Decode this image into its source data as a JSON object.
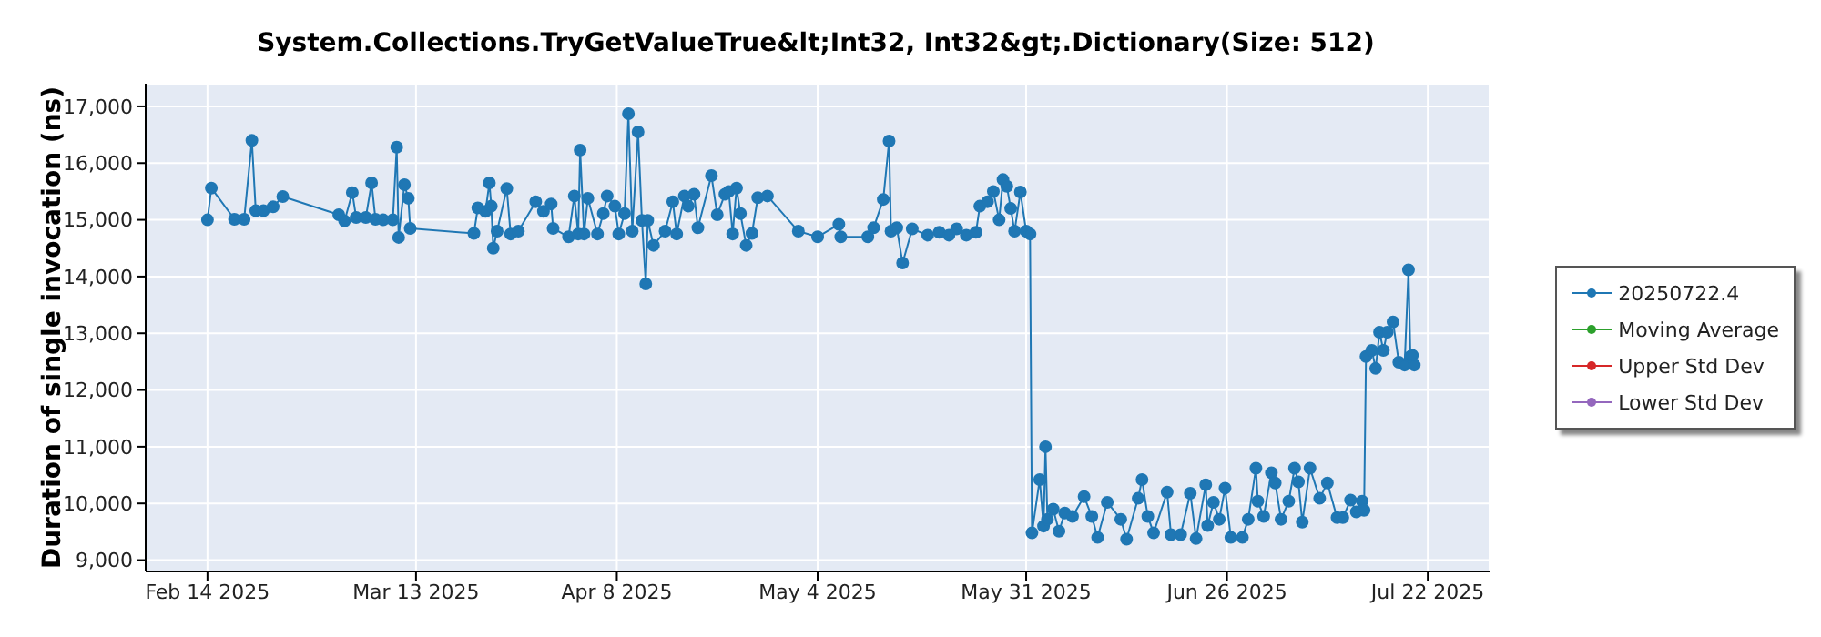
{
  "chart_data": {
    "type": "line",
    "title": "System.Collections.TryGetValueTrue&lt;Int32, Int32&gt;.Dictionary(Size: 512)",
    "ylabel": "Duration of single invocation (ns)",
    "xlim": [
      "2025-02-06",
      "2025-07-30"
    ],
    "xticks": [
      {
        "value": "2025-02-14",
        "label": "Feb 14 2025"
      },
      {
        "value": "2025-03-13",
        "label": "Mar 13 2025"
      },
      {
        "value": "2025-04-08",
        "label": "Apr 8 2025"
      },
      {
        "value": "2025-05-04",
        "label": "May 4 2025"
      },
      {
        "value": "2025-05-31",
        "label": "May 31 2025"
      },
      {
        "value": "2025-06-26",
        "label": "Jun 26 2025"
      },
      {
        "value": "2025-07-22",
        "label": "Jul 22 2025"
      }
    ],
    "ylim": [
      8800,
      17400
    ],
    "yticks": [
      {
        "value": 9000,
        "label": "9,000"
      },
      {
        "value": 10000,
        "label": "10,000"
      },
      {
        "value": 11000,
        "label": "11,000"
      },
      {
        "value": 12000,
        "label": "12,000"
      },
      {
        "value": 13000,
        "label": "13,000"
      },
      {
        "value": 14000,
        "label": "14,000"
      },
      {
        "value": 15000,
        "label": "15,000"
      },
      {
        "value": 16000,
        "label": "16,000"
      },
      {
        "value": 17000,
        "label": "17,000"
      }
    ],
    "grid": true,
    "legend": "right",
    "marker": "circle",
    "line_style": "solid",
    "series": [
      {
        "name": "20250722.4",
        "color": "#1f77b4",
        "x": [
          "2025-02-14T00:00",
          "2025-02-14T12:00",
          "2025-02-17T12:00",
          "2025-02-18T18:00",
          "2025-02-19T18:00",
          "2025-02-20T06:00",
          "2025-02-21T06:00",
          "2025-02-22T12:00",
          "2025-02-23T18:00",
          "2025-03-03T00:00",
          "2025-03-03T18:00",
          "2025-03-04T18:00",
          "2025-03-05T06:00",
          "2025-03-06T12:00",
          "2025-03-07T06:00",
          "2025-03-07T18:00",
          "2025-03-08T18:00",
          "2025-03-10T00:00",
          "2025-03-10T12:00",
          "2025-03-10T18:00",
          "2025-03-11T12:00",
          "2025-03-12T00:00",
          "2025-03-12T06:00",
          "2025-03-20T12:00",
          "2025-03-21T00:00",
          "2025-03-22T00:00",
          "2025-03-22T12:00",
          "2025-03-22T18:00",
          "2025-03-23T00:00",
          "2025-03-23T12:00",
          "2025-03-24T18:00",
          "2025-03-25T06:00",
          "2025-03-26T06:00",
          "2025-03-28T12:00",
          "2025-03-29T12:00",
          "2025-03-30T12:00",
          "2025-03-30T18:00",
          "2025-04-01T18:00",
          "2025-04-02T12:00",
          "2025-04-03T00:00",
          "2025-04-03T06:00",
          "2025-04-03T18:00",
          "2025-04-04T06:00",
          "2025-04-05T12:00",
          "2025-04-06T06:00",
          "2025-04-06T18:00",
          "2025-04-07T18:00",
          "2025-04-08T06:00",
          "2025-04-09T00:00",
          "2025-04-09T12:00",
          "2025-04-10T00:00",
          "2025-04-10T18:00",
          "2025-04-11T06:00",
          "2025-04-11T18:00",
          "2025-04-12T00:00",
          "2025-04-12T18:00",
          "2025-04-14T06:00",
          "2025-04-15T06:00",
          "2025-04-15T18:00",
          "2025-04-16T18:00",
          "2025-04-17T06:00",
          "2025-04-18T00:00",
          "2025-04-18T12:00",
          "2025-04-20T06:00",
          "2025-04-21T00:00",
          "2025-04-22T00:00",
          "2025-04-22T12:00",
          "2025-04-23T00:00",
          "2025-04-23T12:00",
          "2025-04-24T00:00",
          "2025-04-24T18:00",
          "2025-04-25T12:00",
          "2025-04-26T06:00",
          "2025-04-27T12:00",
          "2025-05-01T12:00",
          "2025-05-04T00:00",
          "2025-05-06T18:00",
          "2025-05-07T00:00",
          "2025-05-10T12:00",
          "2025-05-11T06:00",
          "2025-05-12T12:00",
          "2025-05-13T06:00",
          "2025-05-13T12:00",
          "2025-05-14T06:00",
          "2025-05-15T00:00",
          "2025-05-16T06:00",
          "2025-05-18T06:00",
          "2025-05-19T18:00",
          "2025-05-21T00:00",
          "2025-05-22T00:00",
          "2025-05-23T06:00",
          "2025-05-24T12:00",
          "2025-05-25T00:00",
          "2025-05-26T00:00",
          "2025-05-26T18:00",
          "2025-05-27T12:00",
          "2025-05-28T00:00",
          "2025-05-28T12:00",
          "2025-05-29T00:00",
          "2025-05-29T12:00",
          "2025-05-30T06:00",
          "2025-05-31T00:00",
          "2025-05-31T12:00",
          "2025-05-31T18:00",
          "2025-06-01T18:00",
          "2025-06-02T06:00",
          "2025-06-02T12:00",
          "2025-06-02T18:00",
          "2025-06-03T12:00",
          "2025-06-04T06:00",
          "2025-06-05T00:00",
          "2025-06-06T00:00",
          "2025-06-07T12:00",
          "2025-06-08T12:00",
          "2025-06-09T06:00",
          "2025-06-10T12:00",
          "2025-06-12T06:00",
          "2025-06-13T00:00",
          "2025-06-14T12:00",
          "2025-06-15T00:00",
          "2025-06-15T18:00",
          "2025-06-16T12:00",
          "2025-06-18T06:00",
          "2025-06-18T18:00",
          "2025-06-20T00:00",
          "2025-06-21T06:00",
          "2025-06-22T00:00",
          "2025-06-23T06:00",
          "2025-06-23T12:00",
          "2025-06-24T06:00",
          "2025-06-25T00:00",
          "2025-06-25T18:00",
          "2025-06-26T12:00",
          "2025-06-28T00:00",
          "2025-06-28T18:00",
          "2025-06-29T18:00",
          "2025-06-30T00:00",
          "2025-06-30T18:00",
          "2025-07-01T18:00",
          "2025-07-02T06:00",
          "2025-07-03T00:00",
          "2025-07-04T00:00",
          "2025-07-04T18:00",
          "2025-07-05T06:00",
          "2025-07-05T18:00",
          "2025-07-06T18:00",
          "2025-07-08T00:00",
          "2025-07-09T00:00",
          "2025-07-10T06:00",
          "2025-07-11T00:00",
          "2025-07-12T00:00",
          "2025-07-12T18:00",
          "2025-07-13T12:00",
          "2025-07-13T18:00",
          "2025-07-14T00:00",
          "2025-07-14T18:00",
          "2025-07-15T06:00",
          "2025-07-15T18:00",
          "2025-07-16T06:00",
          "2025-07-16T18:00",
          "2025-07-17T12:00",
          "2025-07-18T06:00",
          "2025-07-19T00:00",
          "2025-07-19T12:00",
          "2025-07-19T18:00",
          "2025-07-20T00:00",
          "2025-07-20T06:00"
        ],
        "values": [
          15000,
          15560,
          15010,
          15010,
          16400,
          15160,
          15160,
          15230,
          15410,
          15090,
          14980,
          15480,
          15040,
          15040,
          15650,
          15010,
          15000,
          15000,
          16280,
          14690,
          15620,
          15380,
          14850,
          14760,
          15210,
          15150,
          15650,
          15240,
          14500,
          14800,
          15550,
          14750,
          14800,
          15320,
          15150,
          15280,
          14850,
          14700,
          15420,
          14750,
          16230,
          14750,
          15380,
          14750,
          15110,
          15420,
          15240,
          14750,
          15110,
          16870,
          14800,
          16550,
          14990,
          13870,
          14990,
          14550,
          14800,
          15320,
          14750,
          15420,
          15240,
          15450,
          14860,
          15780,
          15090,
          15450,
          15500,
          14750,
          15560,
          15110,
          14550,
          14760,
          15390,
          15420,
          14800,
          14700,
          14920,
          14700,
          14700,
          14860,
          15360,
          16390,
          14800,
          14860,
          14240,
          14840,
          14730,
          14780,
          14730,
          14840,
          14730,
          14780,
          15240,
          15320,
          15500,
          15000,
          15710,
          15590,
          15200,
          14800,
          15490,
          14800,
          14750,
          9480,
          10420,
          9600,
          11000,
          9720,
          9900,
          9510,
          9830,
          9770,
          10120,
          9770,
          9400,
          10020,
          9720,
          9370,
          10090,
          10420,
          9770,
          9480,
          10200,
          9450,
          9450,
          10180,
          9380,
          10330,
          9610,
          10020,
          9720,
          10270,
          9400,
          9400,
          9720,
          10620,
          10040,
          9770,
          10540,
          10360,
          9720,
          10040,
          10620,
          10380,
          9670,
          10620,
          10090,
          10360,
          9750,
          9750,
          10060,
          9850,
          10040,
          9880,
          12590,
          12700,
          12380,
          13020,
          12700,
          13020,
          13200,
          12490,
          12440,
          14120,
          12590,
          12610,
          12440
        ]
      },
      {
        "name": "Moving Average",
        "color": "#2ca02c"
      },
      {
        "name": "Upper Std Dev",
        "color": "#d62728"
      },
      {
        "name": "Lower Std Dev",
        "color": "#9467bd"
      }
    ]
  }
}
